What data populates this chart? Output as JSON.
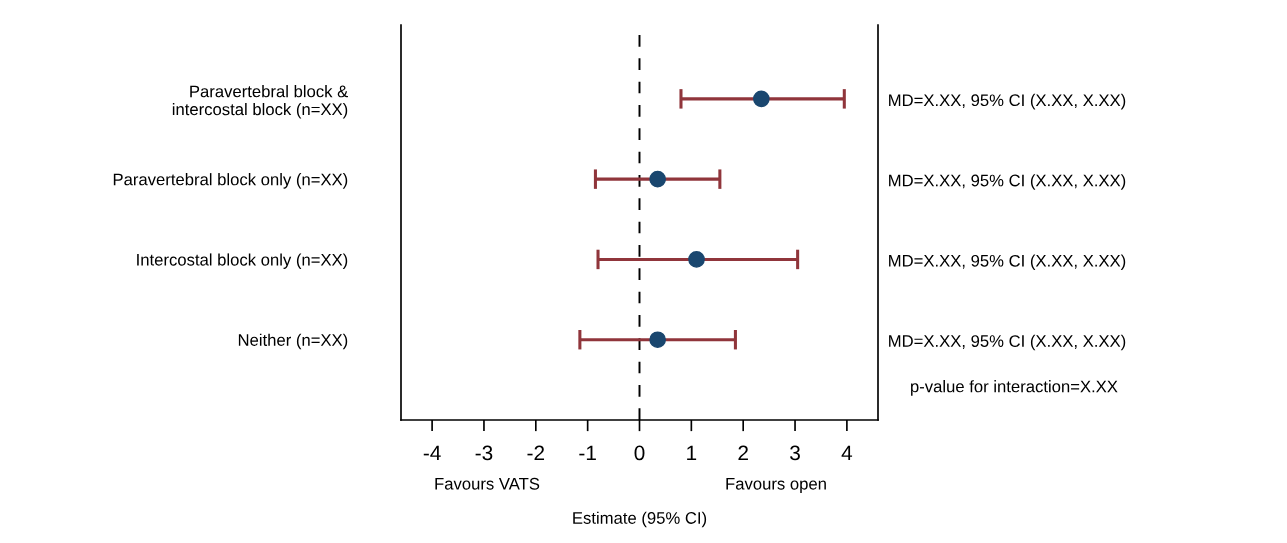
{
  "chart_data": {
    "type": "scatter",
    "orientation": "horizontal",
    "xlabel": "Estimate (95% CI)",
    "categories": [
      "Paravertebral block &\nintercostal block (n=XX)",
      "Paravertebral block only (n=XX)",
      "Intercostal block only (n=XX)",
      "Neither (n=XX)"
    ],
    "series": [
      {
        "color": "#1a476f",
        "values": [
          2.35,
          0.35,
          1.1,
          0.35
        ],
        "errors": [
          [
            0.8,
            3.95
          ],
          [
            -0.85,
            1.55
          ],
          [
            -0.8,
            3.05
          ],
          [
            -1.15,
            1.85
          ]
        ]
      }
    ],
    "xlim": [
      -4.6,
      4.6
    ],
    "xticks": [
      -4,
      -3,
      -2,
      -1,
      0,
      1,
      2,
      3,
      4
    ],
    "ref_lines": [
      {
        "axis": "x",
        "value": 0,
        "color": "#000000",
        "line_style": "dashed"
      }
    ],
    "annotations": [
      "MD=X.XX, 95% CI (X.XX, X.XX)",
      "MD=X.XX, 95% CI (X.XX, X.XX)",
      "MD=X.XX, 95% CI (X.XX, X.XX)",
      "MD=X.XX, 95% CI (X.XX, X.XX)",
      "p-value for interaction=X.XX",
      "Favours VATS",
      "Favours open"
    ],
    "marker": "circle",
    "grid": false,
    "legend": false
  }
}
